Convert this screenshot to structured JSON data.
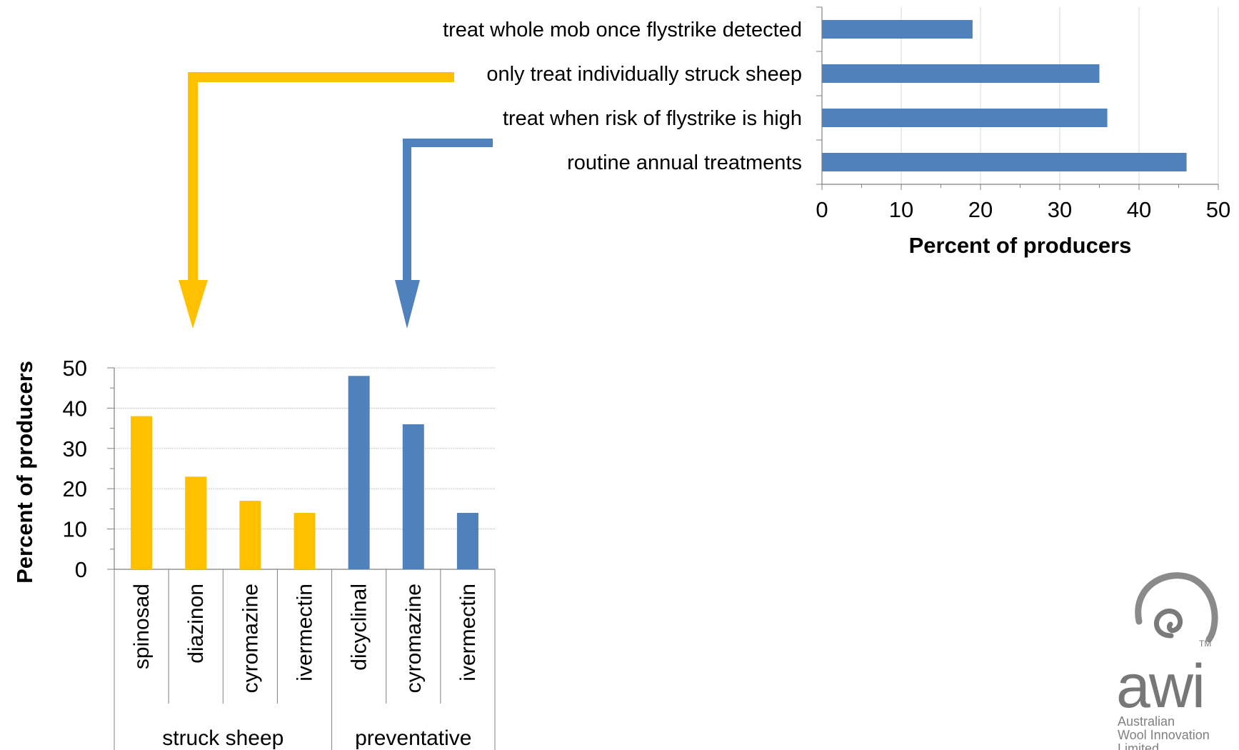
{
  "chart_data": [
    {
      "type": "bar",
      "orientation": "horizontal",
      "categories": [
        "treat whole mob once flystrike detected",
        "only treat individually struck sheep",
        "treat when risk of flystrike is high",
        "routine annual treatments"
      ],
      "values": [
        19,
        35,
        36,
        46
      ],
      "xlabel": "Percent of producers",
      "ylabel": "",
      "xlim": [
        0,
        50
      ],
      "xticks": [
        "0",
        "10",
        "20",
        "30",
        "40",
        "50"
      ],
      "grid": "vertical",
      "color": "#4f81bd"
    },
    {
      "type": "bar",
      "orientation": "vertical",
      "groups": [
        {
          "name": "struck sheep",
          "color": "#ffc000",
          "categories": [
            "spinosad",
            "diazinon",
            "cyromazine",
            "ivermectin"
          ],
          "values": [
            38,
            23,
            17,
            14
          ]
        },
        {
          "name": "preventative",
          "color": "#4f81bd",
          "categories": [
            "dicyclinal",
            "cyromazine",
            "ivermectin"
          ],
          "values": [
            48,
            36,
            14
          ]
        }
      ],
      "xlabel": "",
      "ylabel": "Percent of producers",
      "ylim": [
        0,
        50
      ],
      "yticks": [
        "0",
        "10",
        "20",
        "30",
        "40",
        "50"
      ],
      "grid": "horizontal"
    }
  ],
  "connectors": [
    {
      "from": "only treat individually struck sheep",
      "to": "struck sheep",
      "color": "#ffc000"
    },
    {
      "from": "treat when risk of flystrike is high",
      "to": "preventative",
      "color": "#4f81bd"
    }
  ],
  "logo": {
    "wordmark": "awi",
    "tm": "TM",
    "lines": [
      "Australian",
      "Wool Innovation",
      "Limited"
    ],
    "color": "#777777"
  }
}
